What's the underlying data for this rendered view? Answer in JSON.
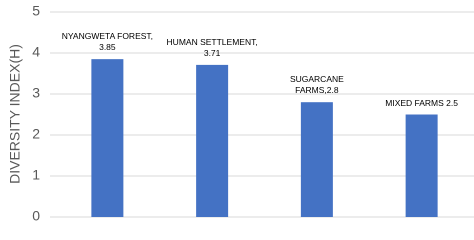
{
  "chart_data": {
    "type": "bar",
    "y_label": "DIVERSITY INDEX(H)",
    "values": [
      3.85,
      3.71,
      2.8,
      2.5
    ],
    "value_labels": [
      "NYANGWETA FOREST, 3.85",
      "HUMAN SETTLEMENT, 3.71",
      "SUGARCANE FARMS,2.8",
      "MIXED FARMS 2.5"
    ],
    "color": "#4472c4",
    "ylim": [
      0,
      5
    ],
    "yticks": [
      0,
      1,
      2,
      3,
      4,
      5
    ],
    "grid": true
  }
}
